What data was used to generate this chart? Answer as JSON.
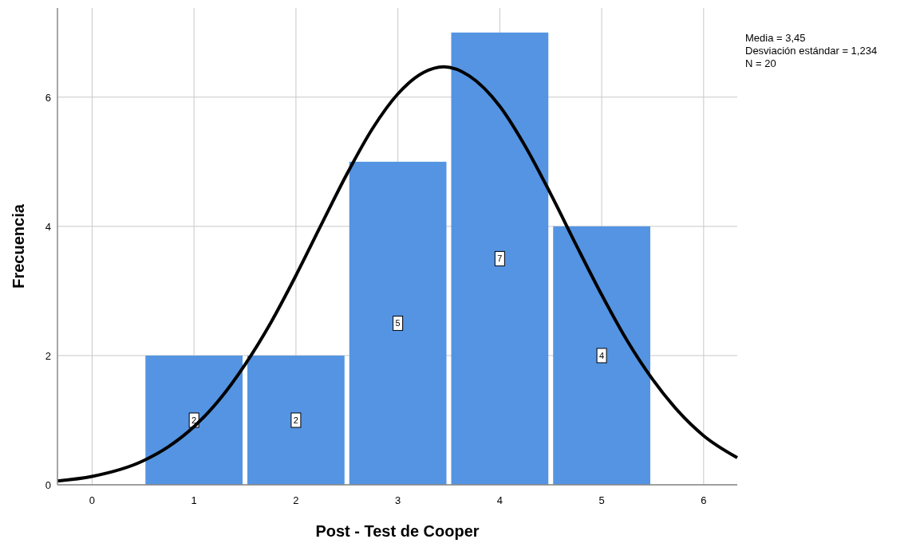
{
  "chart_data": {
    "type": "histogram",
    "xlabel": "Post - Test de Cooper",
    "ylabel": "Frecuencia",
    "bins": [
      0.5,
      1.5,
      2.5,
      3.5,
      4.5,
      5.5
    ],
    "values": [
      2,
      2,
      5,
      7,
      4
    ],
    "color": "#5494e2",
    "value_labels": [
      "2",
      "2",
      "5",
      "7",
      "4"
    ],
    "series": [
      {
        "type": "line",
        "color": "#000000",
        "x": [
          -0.34,
          0,
          0.5,
          0.75,
          1,
          1.25,
          1.5,
          1.75,
          2,
          2.25,
          2.5,
          2.75,
          3,
          3.25,
          3.45,
          3.7,
          4,
          4.25,
          4.5,
          4.75,
          5,
          5.25,
          5.5,
          5.75,
          6,
          6.33
        ],
        "values": [
          0.06,
          0.13,
          0.37,
          0.59,
          0.9,
          1.32,
          1.86,
          2.5,
          3.24,
          4.03,
          4.81,
          5.51,
          6.05,
          6.38,
          6.47,
          6.33,
          5.86,
          5.24,
          4.5,
          3.71,
          2.94,
          2.23,
          1.63,
          1.14,
          0.76,
          0.42
        ]
      }
    ],
    "xlim": [
      -0.34,
      6.33
    ],
    "xticks": [
      0,
      1,
      2,
      3,
      4,
      5,
      6
    ],
    "ylim": [
      0,
      7.38
    ],
    "yticks": [
      0,
      2,
      4,
      6
    ],
    "grid": true,
    "annotations": [
      "Media = 3,45",
      "Desviación estándar = 1,234",
      "N = 20"
    ]
  }
}
